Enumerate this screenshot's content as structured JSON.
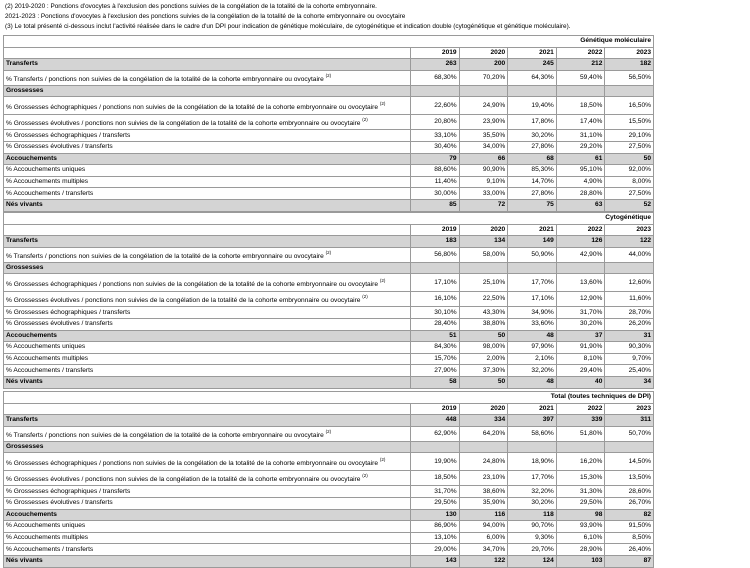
{
  "notes": {
    "note2a": "(2) 2019-2020 : Ponctions d'ovocytes à l'exclusion des ponctions suivies de la congélation de la totalité de la cohorte embryonnaire.",
    "note2b": "2021-2023 : Ponctions d'ovocytes à l'exclusion des ponctions suivies de la congélation de la totalité de la cohorte embryonnaire ou ovocytaire",
    "note3": "(3)   Le total présenté ci-dessous inclut l'activité réalisée dans le cadre d'un DPI pour indication de génétique moléculaire, de cytogénétique et indication double (cytogénétique et génétique moléculaire)."
  },
  "years": [
    "2019",
    "2020",
    "2021",
    "2022",
    "2023"
  ],
  "tables": [
    {
      "title": "Génétique moléculaire",
      "rows": [
        {
          "label": "Transferts",
          "kind": "sec",
          "values": [
            "263",
            "200",
            "245",
            "212",
            "182"
          ]
        },
        {
          "label": "% Transferts / ponctions non suivies de la congélation de la totalité de la cohorte embryonnaire ou ovocytaire",
          "sup": "(2)",
          "values": [
            "68,30%",
            "70,20%",
            "64,30%",
            "59,40%",
            "56,50%"
          ]
        },
        {
          "label": "Grossesses",
          "kind": "sec",
          "values": [
            "",
            "",
            "",
            "",
            ""
          ]
        },
        {
          "label": "% Grossesses échographiques / ponctions non suivies de la congélation de la totalité de la cohorte embryonnaire ou ovocytaire",
          "sup": "(2)",
          "kind": "tall",
          "values": [
            "22,60%",
            "24,90%",
            "19,40%",
            "18,50%",
            "16,50%"
          ]
        },
        {
          "label": "% Grossesses évolutives / ponctions non suivies de la congélation de la totalité de la cohorte embryonnaire ou ovocytaire",
          "sup": "(2)",
          "values": [
            "20,80%",
            "23,90%",
            "17,80%",
            "17,40%",
            "15,50%"
          ]
        },
        {
          "label": "% Grossesses échographiques / transferts",
          "values": [
            "33,10%",
            "35,50%",
            "30,20%",
            "31,10%",
            "29,10%"
          ]
        },
        {
          "label": "% Grossesses évolutives / transferts",
          "values": [
            "30,40%",
            "34,00%",
            "27,80%",
            "29,20%",
            "27,50%"
          ]
        },
        {
          "label": "Accouchements",
          "kind": "sec",
          "values": [
            "79",
            "66",
            "68",
            "61",
            "50"
          ]
        },
        {
          "label": "% Accouchements uniques",
          "values": [
            "88,60%",
            "90,90%",
            "85,30%",
            "95,10%",
            "92,00%"
          ]
        },
        {
          "label": "% Accouchements multiples",
          "values": [
            "11,40%",
            "9,10%",
            "14,70%",
            "4,90%",
            "8,00%"
          ]
        },
        {
          "label": "% Accouchements / transferts",
          "values": [
            "30,00%",
            "33,00%",
            "27,80%",
            "28,80%",
            "27,50%"
          ]
        },
        {
          "label": "Nés vivants",
          "kind": "sec",
          "values": [
            "85",
            "72",
            "75",
            "63",
            "52"
          ]
        }
      ]
    },
    {
      "title": "Cytogénétique",
      "rows": [
        {
          "label": "Transferts",
          "kind": "sec",
          "values": [
            "183",
            "134",
            "149",
            "126",
            "122"
          ]
        },
        {
          "label": "% Transferts / ponctions non suivies de la congélation de la totalité de la cohorte embryonnaire ou ovocytaire",
          "sup": "(2)",
          "values": [
            "56,80%",
            "58,00%",
            "50,90%",
            "42,90%",
            "44,00%"
          ]
        },
        {
          "label": "Grossesses",
          "kind": "sec",
          "values": [
            "",
            "",
            "",
            "",
            ""
          ]
        },
        {
          "label": "% Grossesses échographiques / ponctions non suivies de la congélation de la totalité de la cohorte embryonnaire ou ovocytaire",
          "sup": "(2)",
          "kind": "tall",
          "values": [
            "17,10%",
            "25,10%",
            "17,70%",
            "13,60%",
            "12,60%"
          ]
        },
        {
          "label": "% Grossesses évolutives / ponctions non suivies de la congélation de la totalité de la cohorte embryonnaire ou ovocytaire",
          "sup": "(2)",
          "values": [
            "16,10%",
            "22,50%",
            "17,10%",
            "12,90%",
            "11,60%"
          ]
        },
        {
          "label": "% Grossesses échographiques / transferts",
          "values": [
            "30,10%",
            "43,30%",
            "34,90%",
            "31,70%",
            "28,70%"
          ]
        },
        {
          "label": "% Grossesses évolutives / transferts",
          "values": [
            "28,40%",
            "38,80%",
            "33,60%",
            "30,20%",
            "26,20%"
          ]
        },
        {
          "label": "Accouchements",
          "kind": "sec",
          "values": [
            "51",
            "50",
            "48",
            "37",
            "31"
          ]
        },
        {
          "label": "% Accouchements uniques",
          "values": [
            "84,30%",
            "98,00%",
            "97,90%",
            "91,90%",
            "90,30%"
          ]
        },
        {
          "label": "% Accouchements multiples",
          "values": [
            "15,70%",
            "2,00%",
            "2,10%",
            "8,10%",
            "9,70%"
          ]
        },
        {
          "label": "% Accouchements / transferts",
          "values": [
            "27,90%",
            "37,30%",
            "32,20%",
            "29,40%",
            "25,40%"
          ]
        },
        {
          "label": "Nés vivants",
          "kind": "sec",
          "values": [
            "58",
            "50",
            "48",
            "40",
            "34"
          ]
        }
      ]
    },
    {
      "title": "Total (toutes techniques de DPI)",
      "rows": [
        {
          "label": "Transferts",
          "kind": "sec",
          "values": [
            "448",
            "334",
            "397",
            "339",
            "311"
          ]
        },
        {
          "label": "% Transferts / ponctions non suivies de la congélation de la totalité de la cohorte embryonnaire ou ovocytaire",
          "sup": "(2)",
          "values": [
            "62,90%",
            "64,20%",
            "58,60%",
            "51,80%",
            "50,70%"
          ]
        },
        {
          "label": "Grossesses",
          "kind": "sec",
          "values": [
            "",
            "",
            "",
            "",
            ""
          ]
        },
        {
          "label": "% Grossesses échographiques / ponctions non suivies de la congélation de la totalité de la cohorte embryonnaire ou ovocytaire",
          "sup": "(2)",
          "kind": "tall",
          "values": [
            "19,90%",
            "24,80%",
            "18,90%",
            "16,20%",
            "14,50%"
          ]
        },
        {
          "label": "% Grossesses évolutives / ponctions non suivies de la congélation de la totalité de la cohorte embryonnaire ou ovocytaire",
          "sup": "(2)",
          "values": [
            "18,50%",
            "23,10%",
            "17,70%",
            "15,30%",
            "13,50%"
          ]
        },
        {
          "label": "% Grossesses échographiques / transferts",
          "values": [
            "31,70%",
            "38,60%",
            "32,20%",
            "31,30%",
            "28,60%"
          ]
        },
        {
          "label": "% Grossesses évolutives / transferts",
          "values": [
            "29,50%",
            "35,90%",
            "30,20%",
            "29,50%",
            "26,70%"
          ]
        },
        {
          "label": "Accouchements",
          "kind": "sec",
          "values": [
            "130",
            "116",
            "118",
            "98",
            "82"
          ]
        },
        {
          "label": "% Accouchements uniques",
          "values": [
            "86,90%",
            "94,00%",
            "90,70%",
            "93,90%",
            "91,50%"
          ]
        },
        {
          "label": "% Accouchements multiples",
          "values": [
            "13,10%",
            "6,00%",
            "9,30%",
            "6,10%",
            "8,50%"
          ]
        },
        {
          "label": "% Accouchements / transferts",
          "values": [
            "29,00%",
            "34,70%",
            "29,70%",
            "28,90%",
            "26,40%"
          ]
        },
        {
          "label": "Nés vivants",
          "kind": "sec",
          "values": [
            "143",
            "122",
            "124",
            "103",
            "87"
          ]
        }
      ]
    }
  ]
}
